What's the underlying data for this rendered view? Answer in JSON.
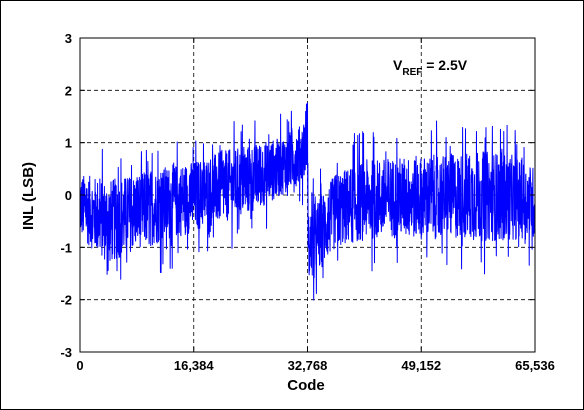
{
  "chart_data": {
    "type": "line",
    "title": "",
    "xlabel": "Code",
    "ylabel": "INL (LSB)",
    "xlim": [
      0,
      65536
    ],
    "ylim": [
      -3,
      3
    ],
    "x_ticks": [
      0,
      16384,
      32768,
      49152,
      65536
    ],
    "x_tick_labels": [
      "0",
      "16,384",
      "32,768",
      "49,152",
      "65,536"
    ],
    "y_ticks": [
      -3,
      -2,
      -1,
      0,
      1,
      2,
      3
    ],
    "y_tick_labels": [
      "-3",
      "-2",
      "-1",
      "0",
      "1",
      "2",
      "3"
    ],
    "grid": true,
    "grid_style": "dashed",
    "series": [
      {
        "color": "#0000ff",
        "envelope": [
          {
            "code": 0,
            "min": -1.3,
            "max": 0.9
          },
          {
            "code": 4096,
            "min": -2.0,
            "max": 0.95
          },
          {
            "code": 8192,
            "min": -1.6,
            "max": 1.0
          },
          {
            "code": 12288,
            "min": -1.5,
            "max": 1.15
          },
          {
            "code": 16384,
            "min": -1.25,
            "max": 1.2
          },
          {
            "code": 20480,
            "min": -1.1,
            "max": 1.4
          },
          {
            "code": 24576,
            "min": -0.9,
            "max": 1.5
          },
          {
            "code": 28672,
            "min": -0.5,
            "max": 1.55
          },
          {
            "code": 32000,
            "min": -0.2,
            "max": 1.8
          },
          {
            "code": 32768,
            "min": -0.1,
            "max": 2.5
          },
          {
            "code": 32900,
            "min": -2.3,
            "max": 0.2
          },
          {
            "code": 36864,
            "min": -1.6,
            "max": 1.0
          },
          {
            "code": 40960,
            "min": -1.5,
            "max": 1.3
          },
          {
            "code": 45056,
            "min": -1.45,
            "max": 1.35
          },
          {
            "code": 49152,
            "min": -1.5,
            "max": 1.4
          },
          {
            "code": 53248,
            "min": -1.5,
            "max": 1.45
          },
          {
            "code": 57344,
            "min": -1.6,
            "max": 1.55
          },
          {
            "code": 61440,
            "min": -1.55,
            "max": 1.5
          },
          {
            "code": 65536,
            "min": -1.4,
            "max": 1.1
          }
        ]
      }
    ],
    "annotation": {
      "main": "V",
      "subscript": "REF",
      "rest": " = 2.5V"
    }
  }
}
